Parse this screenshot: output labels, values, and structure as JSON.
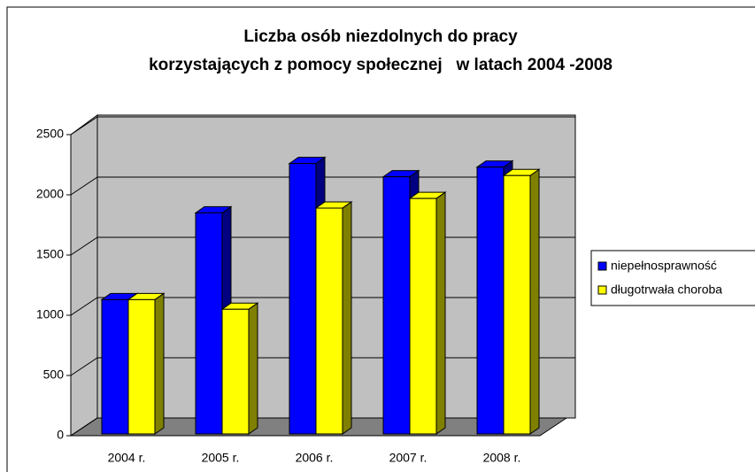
{
  "chart_data": {
    "type": "bar3d",
    "title": [
      "Liczba osób niezdolnych do pracy",
      "korzystających z pomocy społecznej   w latach 2004 -2008"
    ],
    "categories": [
      "2004 r.",
      "2005 r.",
      "2006 r.",
      "2007 r.",
      "2008 r."
    ],
    "series": [
      {
        "name": "niepełnosprawność",
        "color": "#0000ff",
        "values": [
          1130,
          1850,
          2260,
          2150,
          2230
        ]
      },
      {
        "name": "długotrwała choroba",
        "color": "#ffff00",
        "values": [
          1130,
          1050,
          1890,
          1970,
          2160
        ]
      }
    ],
    "ylim": [
      0,
      2500
    ],
    "yticks": [
      0,
      500,
      1000,
      1500,
      2000,
      2500
    ],
    "grid": true,
    "legend": "right"
  }
}
